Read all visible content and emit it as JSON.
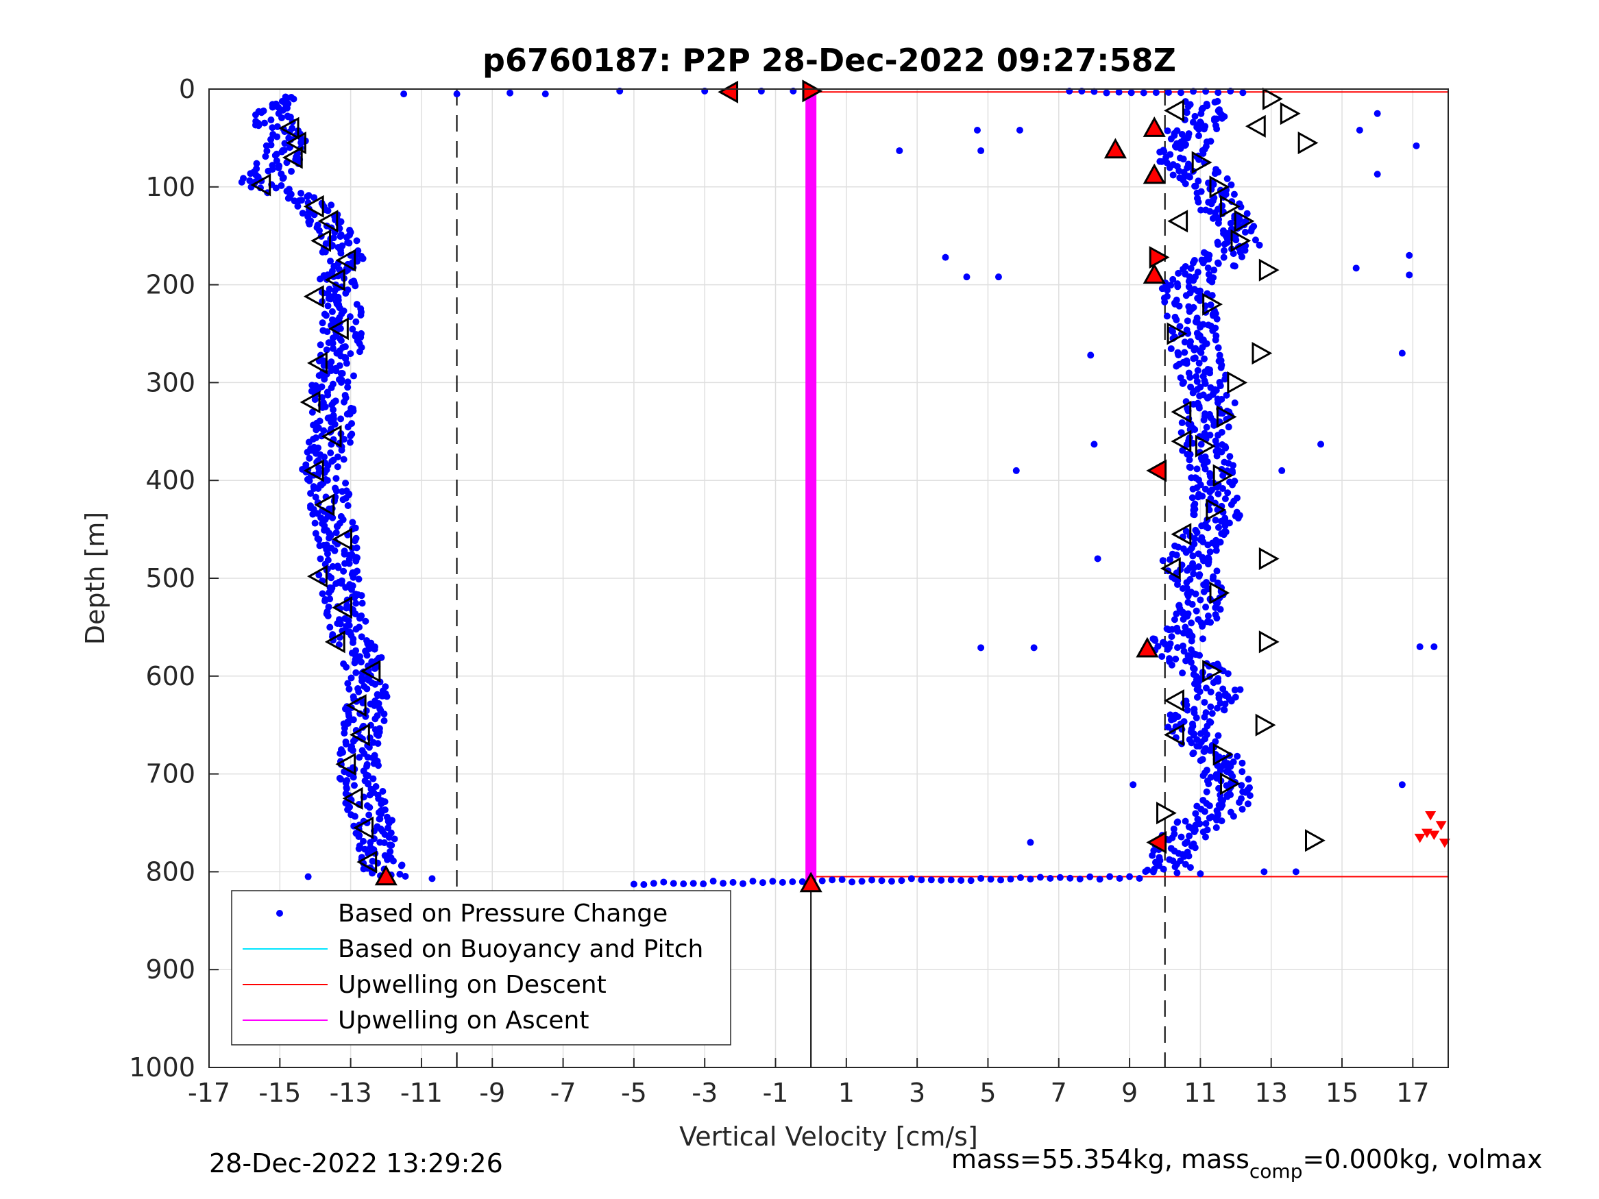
{
  "chart_data": {
    "type": "scatter",
    "title": "p6760187: P2P 28-Dec-2022 09:27:58Z",
    "xlabel": "Vertical Velocity [cm/s]",
    "ylabel": "Depth [m]",
    "xlim": [
      -17,
      18
    ],
    "ylim": [
      0,
      1000
    ],
    "y_reversed": true,
    "grid": true,
    "xticks": [
      -17,
      -15,
      -13,
      -11,
      -9,
      -7,
      -5,
      -3,
      -1,
      1,
      3,
      5,
      7,
      9,
      11,
      13,
      15,
      17
    ],
    "yticks": [
      0,
      100,
      200,
      300,
      400,
      500,
      600,
      700,
      800,
      900,
      1000
    ],
    "legend_position": "bottom-left",
    "legend": [
      {
        "label": "Based on Pressure Change",
        "marker": "dot",
        "color": "#0000ff"
      },
      {
        "label": "Based on Buoyancy and Pitch",
        "marker": "line",
        "color": "#00e5ff"
      },
      {
        "label": "Upwelling on Descent",
        "marker": "line",
        "color": "#ff0000"
      },
      {
        "label": "Upwelling on Ascent",
        "marker": "line",
        "color": "#ff00ff"
      }
    ],
    "reference_lines": [
      {
        "type": "vertical",
        "x": -10,
        "style": "dashed",
        "color": "#000000"
      },
      {
        "type": "vertical",
        "x": 10,
        "style": "dashed",
        "color": "#000000"
      },
      {
        "type": "vertical",
        "x": 0,
        "style": "solid",
        "color": "#000000",
        "y_range": [
          815,
          1000
        ]
      },
      {
        "type": "horizontal",
        "y": 3,
        "x_range": [
          0,
          18
        ],
        "color": "#ff0000"
      },
      {
        "type": "horizontal",
        "y": 805,
        "x_range": [
          0,
          18
        ],
        "color": "#ff0000"
      },
      {
        "type": "vertical_band",
        "x": 0,
        "y_range": [
          3,
          810
        ],
        "color": "#ff00ff"
      }
    ],
    "series": [
      {
        "marker": "dot",
        "color": "#0000ff",
        "descent_profile": [
          {
            "depth": 10,
            "v": -15.0
          },
          {
            "depth": 30,
            "v": -15.3
          },
          {
            "depth": 50,
            "v": -14.8
          },
          {
            "depth": 75,
            "v": -15.0
          },
          {
            "depth": 95,
            "v": -15.6
          },
          {
            "depth": 120,
            "v": -13.9
          },
          {
            "depth": 160,
            "v": -13.2
          },
          {
            "depth": 200,
            "v": -13.3
          },
          {
            "depth": 250,
            "v": -13.2
          },
          {
            "depth": 300,
            "v": -13.5
          },
          {
            "depth": 350,
            "v": -13.5
          },
          {
            "depth": 390,
            "v": -13.8
          },
          {
            "depth": 450,
            "v": -13.4
          },
          {
            "depth": 500,
            "v": -13.3
          },
          {
            "depth": 560,
            "v": -13.0
          },
          {
            "depth": 600,
            "v": -12.5
          },
          {
            "depth": 650,
            "v": -12.6
          },
          {
            "depth": 700,
            "v": -12.8
          },
          {
            "depth": 750,
            "v": -12.4
          },
          {
            "depth": 805,
            "v": -12.0
          }
        ],
        "ascent_profile": [
          {
            "depth": 15,
            "v": 11.2
          },
          {
            "depth": 40,
            "v": 10.8
          },
          {
            "depth": 70,
            "v": 10.4
          },
          {
            "depth": 100,
            "v": 11.3
          },
          {
            "depth": 130,
            "v": 11.8
          },
          {
            "depth": 160,
            "v": 12.0
          },
          {
            "depth": 200,
            "v": 10.6
          },
          {
            "depth": 240,
            "v": 10.8
          },
          {
            "depth": 280,
            "v": 10.9
          },
          {
            "depth": 320,
            "v": 11.3
          },
          {
            "depth": 360,
            "v": 11.0
          },
          {
            "depth": 400,
            "v": 11.4
          },
          {
            "depth": 440,
            "v": 11.5
          },
          {
            "depth": 480,
            "v": 10.6
          },
          {
            "depth": 520,
            "v": 11.2
          },
          {
            "depth": 570,
            "v": 10.2
          },
          {
            "depth": 610,
            "v": 11.6
          },
          {
            "depth": 650,
            "v": 10.6
          },
          {
            "depth": 690,
            "v": 11.8
          },
          {
            "depth": 730,
            "v": 11.7
          },
          {
            "depth": 770,
            "v": 10.3
          },
          {
            "depth": 800,
            "v": 10.0
          }
        ],
        "outliers": [
          {
            "v": -11.5,
            "depth": 5
          },
          {
            "v": -10.0,
            "depth": 5
          },
          {
            "v": -8.5,
            "depth": 4
          },
          {
            "v": -7.5,
            "depth": 5
          },
          {
            "v": -5.4,
            "depth": 2
          },
          {
            "v": -3.0,
            "depth": 2
          },
          {
            "v": -1.4,
            "depth": 2
          },
          {
            "v": -0.5,
            "depth": 2
          },
          {
            "v": -14.2,
            "depth": 805
          },
          {
            "v": -10.7,
            "depth": 807
          },
          {
            "v": 2.5,
            "depth": 63
          },
          {
            "v": 4.7,
            "depth": 42
          },
          {
            "v": 4.8,
            "depth": 63
          },
          {
            "v": 5.9,
            "depth": 42
          },
          {
            "v": 3.8,
            "depth": 172
          },
          {
            "v": 4.4,
            "depth": 192
          },
          {
            "v": 5.3,
            "depth": 192
          },
          {
            "v": 7.9,
            "depth": 272
          },
          {
            "v": 8.0,
            "depth": 363
          },
          {
            "v": 5.8,
            "depth": 390
          },
          {
            "v": 8.1,
            "depth": 480
          },
          {
            "v": 4.8,
            "depth": 571
          },
          {
            "v": 6.3,
            "depth": 571
          },
          {
            "v": 9.1,
            "depth": 711
          },
          {
            "v": 6.2,
            "depth": 770
          },
          {
            "v": 14.4,
            "depth": 363
          },
          {
            "v": 13.3,
            "depth": 390
          },
          {
            "v": 16.0,
            "depth": 25
          },
          {
            "v": 15.5,
            "depth": 42
          },
          {
            "v": 17.1,
            "depth": 58
          },
          {
            "v": 16.0,
            "depth": 87
          },
          {
            "v": 16.9,
            "depth": 170
          },
          {
            "v": 15.4,
            "depth": 183
          },
          {
            "v": 16.9,
            "depth": 190
          },
          {
            "v": 16.7,
            "depth": 270
          },
          {
            "v": 16.7,
            "depth": 711
          },
          {
            "v": 17.2,
            "depth": 570
          },
          {
            "v": 17.6,
            "depth": 570
          },
          {
            "v": 13.7,
            "depth": 800
          },
          {
            "v": 12.8,
            "depth": 800
          },
          {
            "v": 11.0,
            "depth": 802
          }
        ],
        "surface_transit": {
          "depth": 3,
          "v_range": [
            7.3,
            12.5
          ]
        },
        "bottom_transit": {
          "depth": 812,
          "v_range": [
            -5,
            9.5
          ]
        }
      }
    ],
    "markers_descent_triangles": [
      {
        "depth": 40,
        "v": -14.7
      },
      {
        "depth": 55,
        "v": -14.5
      },
      {
        "depth": 70,
        "v": -14.6
      },
      {
        "depth": 98,
        "v": -15.5
      },
      {
        "depth": 120,
        "v": -14.0
      },
      {
        "depth": 135,
        "v": -13.6
      },
      {
        "depth": 155,
        "v": -13.8
      },
      {
        "depth": 175,
        "v": -13.1
      },
      {
        "depth": 195,
        "v": -13.4
      },
      {
        "depth": 212,
        "v": -14.0
      },
      {
        "depth": 245,
        "v": -13.3
      },
      {
        "depth": 280,
        "v": -13.9
      },
      {
        "depth": 320,
        "v": -14.1
      },
      {
        "depth": 355,
        "v": -13.5
      },
      {
        "depth": 390,
        "v": -14.0
      },
      {
        "depth": 425,
        "v": -13.7
      },
      {
        "depth": 460,
        "v": -13.2
      },
      {
        "depth": 498,
        "v": -13.9
      },
      {
        "depth": 530,
        "v": -13.2
      },
      {
        "depth": 565,
        "v": -13.4
      },
      {
        "depth": 595,
        "v": -12.4
      },
      {
        "depth": 630,
        "v": -12.8
      },
      {
        "depth": 660,
        "v": -12.7
      },
      {
        "depth": 690,
        "v": -13.1
      },
      {
        "depth": 725,
        "v": -12.9
      },
      {
        "depth": 755,
        "v": -12.6
      },
      {
        "depth": 790,
        "v": -12.5
      }
    ],
    "markers_ascent_triangles": [
      {
        "depth": 10,
        "v": 13.0
      },
      {
        "depth": 25,
        "v": 13.5
      },
      {
        "depth": 55,
        "v": 14.0
      },
      {
        "depth": 75,
        "v": 11.0
      },
      {
        "depth": 100,
        "v": 11.5
      },
      {
        "depth": 120,
        "v": 11.8
      },
      {
        "depth": 135,
        "v": 12.2
      },
      {
        "depth": 155,
        "v": 12.1
      },
      {
        "depth": 185,
        "v": 12.9
      },
      {
        "depth": 220,
        "v": 11.3
      },
      {
        "depth": 250,
        "v": 10.3
      },
      {
        "depth": 270,
        "v": 12.7
      },
      {
        "depth": 300,
        "v": 12.0
      },
      {
        "depth": 335,
        "v": 11.7
      },
      {
        "depth": 365,
        "v": 11.1
      },
      {
        "depth": 395,
        "v": 11.6
      },
      {
        "depth": 430,
        "v": 11.4
      },
      {
        "depth": 480,
        "v": 12.9
      },
      {
        "depth": 515,
        "v": 11.5
      },
      {
        "depth": 565,
        "v": 12.9
      },
      {
        "depth": 595,
        "v": 11.3
      },
      {
        "depth": 650,
        "v": 12.8
      },
      {
        "depth": 680,
        "v": 11.6
      },
      {
        "depth": 710,
        "v": 11.8
      },
      {
        "depth": 740,
        "v": 10.0
      },
      {
        "depth": 768,
        "v": 14.2
      }
    ],
    "markers_left_triangles": [
      {
        "depth": 22,
        "v": 10.3
      },
      {
        "depth": 38,
        "v": 12.6
      },
      {
        "depth": 135,
        "v": 10.4
      },
      {
        "depth": 330,
        "v": 10.5
      },
      {
        "depth": 360,
        "v": 10.5
      },
      {
        "depth": 455,
        "v": 10.5
      },
      {
        "depth": 490,
        "v": 10.2
      },
      {
        "depth": 625,
        "v": 10.3
      },
      {
        "depth": 660,
        "v": 10.3
      }
    ],
    "markers_red_triangles": [
      {
        "depth": 3,
        "v": -2.3,
        "dir": "left"
      },
      {
        "depth": 2,
        "v": 0.0,
        "dir": "right"
      },
      {
        "depth": 40,
        "v": 9.7,
        "dir": "up"
      },
      {
        "depth": 62,
        "v": 8.6,
        "dir": "up"
      },
      {
        "depth": 88,
        "v": 9.7,
        "dir": "up"
      },
      {
        "depth": 172,
        "v": 9.8,
        "dir": "right"
      },
      {
        "depth": 190,
        "v": 9.7,
        "dir": "up"
      },
      {
        "depth": 390,
        "v": 9.8,
        "dir": "left"
      },
      {
        "depth": 572,
        "v": 9.5,
        "dir": "up"
      },
      {
        "depth": 770,
        "v": 9.8,
        "dir": "left"
      },
      {
        "depth": 805,
        "v": -12.0,
        "dir": "up"
      },
      {
        "depth": 812,
        "v": 0.0,
        "dir": "up"
      }
    ],
    "markers_red_cluster": [
      {
        "depth": 742,
        "v": 17.5
      },
      {
        "depth": 752,
        "v": 17.8
      },
      {
        "depth": 760,
        "v": 17.4
      },
      {
        "depth": 765,
        "v": 17.2
      },
      {
        "depth": 770,
        "v": 17.9
      },
      {
        "depth": 762,
        "v": 17.6
      }
    ]
  },
  "footer": {
    "timestamp": "28-Dec-2022 13:29:26",
    "mass_prefix": "mass=55.354kg, mass",
    "mass_sub": "comp",
    "mass_suffix": "=0.000kg, volmax"
  }
}
